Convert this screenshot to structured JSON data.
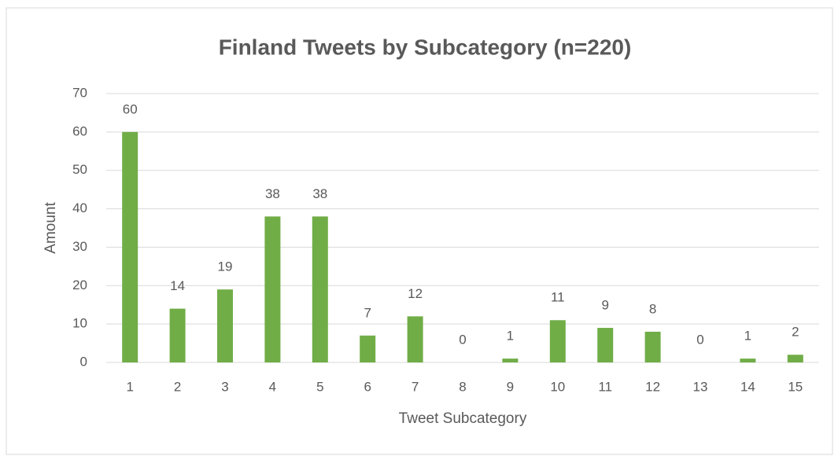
{
  "chart_data": {
    "type": "bar",
    "title": "Finland Tweets by Subcategory (n=220)",
    "x_label": "Tweet Subcategory",
    "y_label": "Amount",
    "categories": [
      "1",
      "2",
      "3",
      "4",
      "5",
      "6",
      "7",
      "8",
      "9",
      "10",
      "11",
      "12",
      "13",
      "14",
      "15"
    ],
    "values": [
      60,
      14,
      19,
      38,
      38,
      7,
      12,
      0,
      1,
      11,
      9,
      8,
      0,
      1,
      2
    ],
    "color": "#70ad47",
    "ylim": [
      0,
      70
    ],
    "yticks": [
      0,
      10,
      20,
      30,
      40,
      50,
      60,
      70
    ],
    "grid": true
  }
}
